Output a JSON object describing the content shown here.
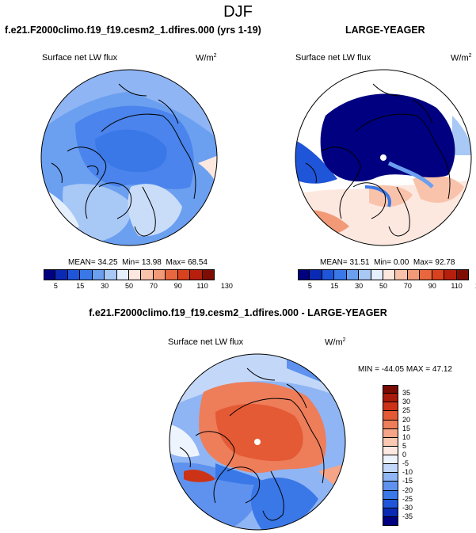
{
  "page_title": "DJF",
  "colors": {
    "scale": [
      "#000080",
      "#0a2ab4",
      "#1f55d8",
      "#3a78e8",
      "#6b9ff0",
      "#a8c8f6",
      "#e6effc",
      "#fde8e0",
      "#f9c3ab",
      "#f29a78",
      "#e8673f",
      "#d9421f",
      "#b61f0c",
      "#7f0d04"
    ],
    "diff_scale": [
      "#000080",
      "#0a2ab4",
      "#1f55d8",
      "#3a78e8",
      "#5f92ee",
      "#8fb5f4",
      "#c3d8f9",
      "#eef4fd",
      "#fde9e0",
      "#fbc8b2",
      "#f5a487",
      "#ee7d5a",
      "#e45a35",
      "#cc3316",
      "#a81a09",
      "#7a0b03"
    ],
    "land": "#000000"
  },
  "panels": [
    {
      "title": "f.e21.F2000climo.f19_f19.cesm2_1.dfires.000 (yrs 1-19)",
      "variable": "Surface net LW flux",
      "units": "W/m",
      "units_sup": "2",
      "mean_label": "MEAN=",
      "mean": "34.25",
      "min_label": "Min=",
      "min": "13.98",
      "max_label": "Max=",
      "max": "68.54"
    },
    {
      "title": "LARGE-YEAGER",
      "variable": "Surface net LW flux",
      "units": "W/m",
      "units_sup": "2",
      "mean_label": "MEAN=",
      "mean": "31.51",
      "min_label": "Min=",
      "min": "0.00",
      "max_label": "Max=",
      "max": "92.78"
    },
    {
      "title": "f.e21.F2000climo.f19_f19.cesm2_1.dfires.000 - LARGE-YEAGER",
      "variable": "Surface net LW flux",
      "units": "W/m",
      "units_sup": "2",
      "minmax_text": "MIN = -44.05 MAX =  47.12"
    }
  ],
  "colorbar_ticks": [
    "5",
    "15",
    "30",
    "50",
    "70",
    "90",
    "110",
    "130"
  ],
  "diff_colorbar_ticks": [
    "35",
    "30",
    "25",
    "20",
    "15",
    "10",
    "5",
    "0",
    "-5",
    "-10",
    "-15",
    "-20",
    "-25",
    "-30",
    "-35"
  ]
}
